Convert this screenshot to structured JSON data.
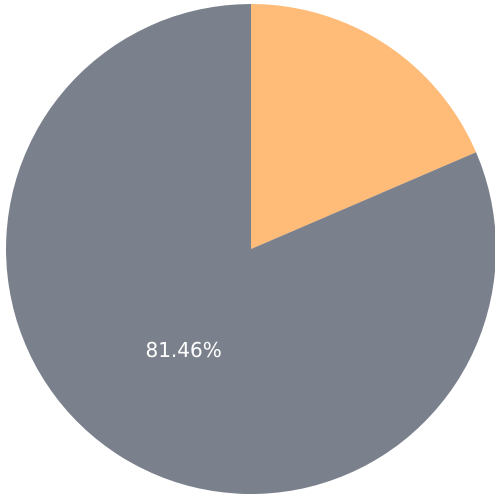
{
  "chart_data": {
    "type": "pie",
    "values": [
      18.54,
      81.46
    ],
    "value_labels": [
      null,
      "81.46%"
    ],
    "colors": [
      "#ffbb78",
      "#7b818c"
    ],
    "start_angle": 0,
    "direction": "clockwise"
  }
}
